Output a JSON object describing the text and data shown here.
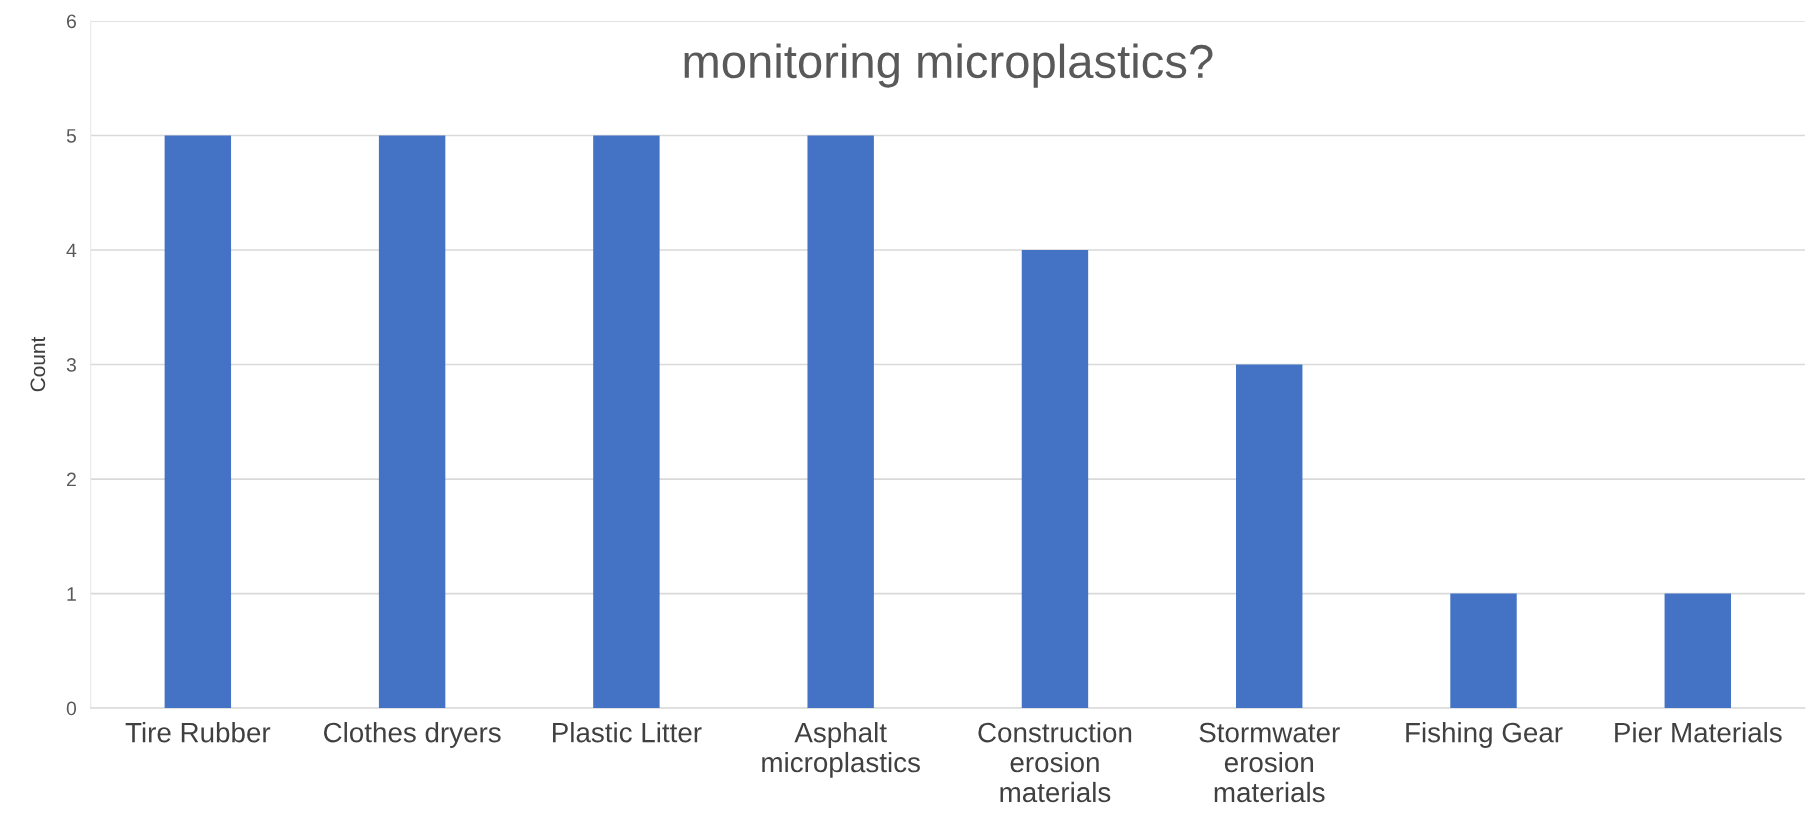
{
  "chart_data": {
    "type": "bar",
    "title": "monitoring microplastics?",
    "ylabel": "Count",
    "categories": [
      "Tire Rubber",
      "Clothes dryers",
      "Plastic Litter",
      "Asphalt microplastics",
      "Construction erosion materials",
      "Stormwater erosion materials",
      "Fishing Gear",
      "Pier Materials"
    ],
    "values": [
      5,
      5,
      5,
      5,
      4,
      3,
      1,
      1
    ],
    "color": "#4472c4",
    "ylim": [
      0,
      6
    ],
    "yticks": [
      0,
      1,
      2,
      3,
      4,
      5,
      6
    ],
    "grid": "y"
  }
}
